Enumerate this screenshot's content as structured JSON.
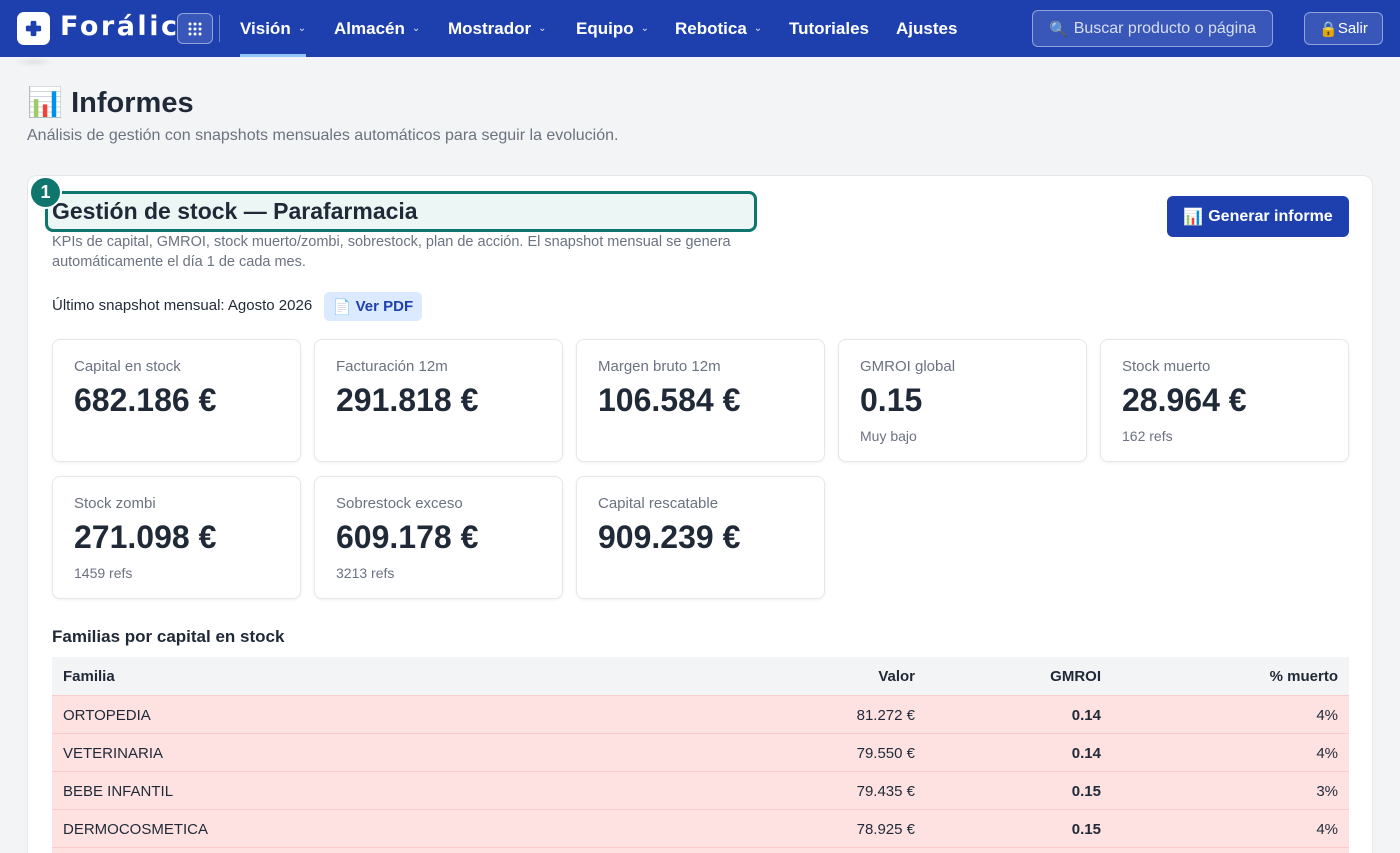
{
  "app": {
    "brand": "Forálic",
    "nav": [
      {
        "label": "Visión",
        "has_menu": true,
        "active": true
      },
      {
        "label": "Almacén",
        "has_menu": true
      },
      {
        "label": "Mostrador",
        "has_menu": true
      },
      {
        "label": "Equipo",
        "has_menu": true
      },
      {
        "label": "Rebotica",
        "has_menu": true
      },
      {
        "label": "Tutoriales",
        "has_menu": false
      },
      {
        "label": "Ajustes",
        "has_menu": false
      }
    ],
    "chev": "⌄",
    "search_placeholder": "Buscar producto o página",
    "search_icon": "🔍",
    "exit_icon": "🔒",
    "exit_label": "Salir"
  },
  "page": {
    "icon": "📊",
    "title": "Informes",
    "subtitle": "Análisis de gestión con snapshots mensuales automáticos para seguir la evolución."
  },
  "report": {
    "step": "1",
    "title": "Gestión de stock — Parafarmacia",
    "description": "KPIs de capital, GMROI, stock muerto/zombi, sobrestock, plan de acción. El snapshot mensual se genera automáticamente el día 1 de cada mes.",
    "generate_icon": "📊",
    "generate_label": "Generar informe",
    "snapshot_text": "Último snapshot mensual: Agosto 2026",
    "pdf_icon": "📄",
    "pdf_label": "Ver PDF",
    "kpis": [
      {
        "label": "Capital en stock",
        "value": "682.186 €",
        "sub": ""
      },
      {
        "label": "Facturación 12m",
        "value": "291.818 €",
        "sub": ""
      },
      {
        "label": "Margen bruto 12m",
        "value": "106.584 €",
        "sub": ""
      },
      {
        "label": "GMROI global",
        "value": "0.15",
        "sub": "Muy bajo"
      },
      {
        "label": "Stock muerto",
        "value": "28.964 €",
        "sub": "162 refs"
      },
      {
        "label": "Stock zombi",
        "value": "271.098 €",
        "sub": "1459 refs"
      },
      {
        "label": "Sobrestock exceso",
        "value": "609.178 €",
        "sub": "3213 refs"
      },
      {
        "label": "Capital rescatable",
        "value": "909.239 €",
        "sub": ""
      }
    ],
    "table": {
      "title": "Familias por capital en stock",
      "headers": {
        "familia": "Familia",
        "valor": "Valor",
        "gmroi": "GMROI",
        "muerto": "% muerto"
      },
      "rows": [
        {
          "familia": "ORTOPEDIA",
          "valor": "81.272 €",
          "gmroi": "0.14",
          "muerto": "4%"
        },
        {
          "familia": "VETERINARIA",
          "valor": "79.550 €",
          "gmroi": "0.14",
          "muerto": "4%"
        },
        {
          "familia": "BEBE INFANTIL",
          "valor": "79.435 €",
          "gmroi": "0.15",
          "muerto": "3%"
        },
        {
          "familia": "DERMOCOSMETICA",
          "valor": "78.925 €",
          "gmroi": "0.15",
          "muerto": "4%"
        }
      ]
    }
  }
}
